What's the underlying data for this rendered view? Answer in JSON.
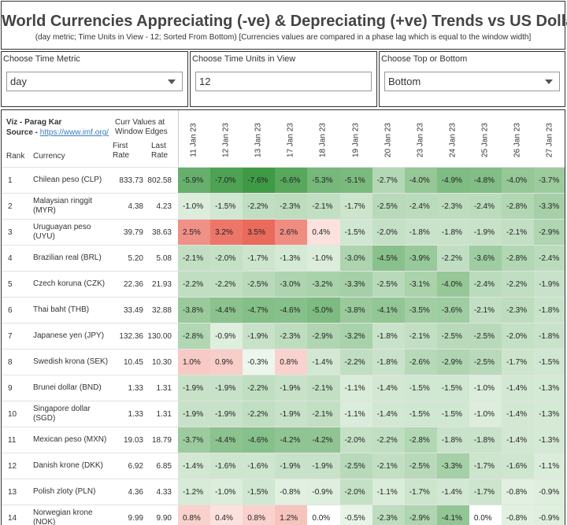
{
  "header": {
    "title": "World Currencies Appreciating (-ve) & Depreciating (+ve) Trends vs US Dollar",
    "subtitle": "(day metric; Time Units in View - 12; Sorted From Bottom) [Currencies values are compared in a phase lag which is equal to the window width]"
  },
  "controls": {
    "time_metric": {
      "label": "Choose Time Metric",
      "value": "day"
    },
    "time_units": {
      "label": "Choose Time Units in View",
      "value": "12"
    },
    "top_bottom": {
      "label": "Choose Top or Bottom",
      "value": "Bottom"
    }
  },
  "table_header": {
    "viz_by": "Viz - Parag Kar",
    "source_label": "Source -",
    "source_link": "https://www.imf.org/",
    "curr_values_line1": "Curr Values at",
    "curr_values_line2": "Window Edges",
    "first_line1": "First",
    "first_line2": "Rate",
    "last_line1": "Last",
    "last_line2": "Rate",
    "rank": "Rank",
    "currency": "Currency"
  },
  "colors": {
    "neg_strong": "#4a9e4a",
    "pos_strong": "#e8665a",
    "neutral": "#ffffff"
  },
  "chart_data": {
    "type": "heatmap",
    "title": "World Currencies Appreciating (-ve) & Depreciating (+ve) Trends vs US Dollar",
    "dates": [
      "11 Jan 23",
      "12 Jan 23",
      "13 Jan 23",
      "17 Jan 23",
      "18 Jan 23",
      "19 Jan 23",
      "20 Jan 23",
      "23 Jan 23",
      "24 Jan 23",
      "25 Jan 23",
      "26 Jan 23",
      "27 Jan 23"
    ],
    "rows": [
      {
        "rank": "1",
        "currency": "Chilean peso  (CLP)",
        "first": "833.73",
        "last": "802.58",
        "values": [
          -5.9,
          -7.0,
          -7.6,
          -6.6,
          -5.3,
          -5.1,
          -2.7,
          -4.0,
          -4.9,
          -4.8,
          -4.0,
          -3.7
        ]
      },
      {
        "rank": "2",
        "currency": "Malaysian ringgit (MYR)",
        "first": "4.38",
        "last": "4.23",
        "values": [
          -1.0,
          -1.5,
          -2.2,
          -2.3,
          -2.1,
          -1.7,
          -2.5,
          -2.4,
          -2.3,
          -2.4,
          -2.8,
          -3.3
        ]
      },
      {
        "rank": "3",
        "currency": "Uruguayan peso (UYU)",
        "first": "39.79",
        "last": "38.63",
        "values": [
          2.5,
          3.2,
          3.5,
          2.6,
          0.4,
          -1.5,
          -2.0,
          -1.8,
          -1.8,
          -1.9,
          -2.1,
          -2.9
        ]
      },
      {
        "rank": "4",
        "currency": "Brazilian real (BRL)",
        "first": "5.20",
        "last": "5.08",
        "values": [
          -2.1,
          -2.0,
          -1.7,
          -1.3,
          -1.0,
          -3.0,
          -4.5,
          -3.9,
          -2.2,
          -3.6,
          -2.8,
          -2.4
        ]
      },
      {
        "rank": "5",
        "currency": "Czech koruna (CZK)",
        "first": "22.36",
        "last": "21.93",
        "values": [
          -2.2,
          -2.2,
          -2.5,
          -3.0,
          -3.2,
          -3.3,
          -2.5,
          -3.1,
          -4.0,
          -2.4,
          -2.2,
          -1.9
        ]
      },
      {
        "rank": "6",
        "currency": "Thai baht  (THB)",
        "first": "33.49",
        "last": "32.88",
        "values": [
          -3.8,
          -4.4,
          -4.7,
          -4.6,
          -5.0,
          -3.8,
          -4.1,
          -3.5,
          -3.6,
          -2.1,
          -2.3,
          -1.8
        ]
      },
      {
        "rank": "7",
        "currency": "Japanese yen (JPY)",
        "first": "132.36",
        "last": "130.00",
        "values": [
          -2.8,
          -0.9,
          -1.9,
          -2.3,
          -2.9,
          -3.2,
          -1.8,
          -2.1,
          -2.5,
          -2.5,
          -2.0,
          -1.8
        ]
      },
      {
        "rank": "8",
        "currency": "Swedish krona (SEK)",
        "first": "10.45",
        "last": "10.30",
        "values": [
          1.0,
          0.9,
          -0.3,
          0.8,
          -1.4,
          -2.2,
          -1.8,
          -2.6,
          -2.9,
          -2.5,
          -1.7,
          -1.5
        ]
      },
      {
        "rank": "9",
        "currency": "Brunei dollar (BND)",
        "first": "1.33",
        "last": "1.31",
        "values": [
          -1.9,
          -1.9,
          -2.2,
          -1.9,
          -2.1,
          -1.1,
          -1.4,
          -1.5,
          -1.5,
          -1.0,
          -1.4,
          -1.3
        ]
      },
      {
        "rank": "10",
        "currency": "Singapore dollar (SGD)",
        "first": "1.33",
        "last": "1.31",
        "values": [
          -1.9,
          -1.9,
          -2.2,
          -1.9,
          -2.1,
          -1.1,
          -1.4,
          -1.5,
          -1.5,
          -1.0,
          -1.4,
          -1.3
        ]
      },
      {
        "rank": "11",
        "currency": "Mexican peso (MXN)",
        "first": "19.03",
        "last": "18.79",
        "values": [
          -3.7,
          -4.4,
          -4.6,
          -4.2,
          -4.2,
          -2.0,
          -2.2,
          -2.8,
          -1.8,
          -1.8,
          -1.4,
          -1.3
        ]
      },
      {
        "rank": "12",
        "currency": "Danish krone (DKK)",
        "first": "6.92",
        "last": "6.85",
        "values": [
          -1.4,
          -1.6,
          -1.6,
          -1.9,
          -1.9,
          -2.5,
          -2.1,
          -2.5,
          -3.3,
          -1.7,
          -1.6,
          -1.1
        ]
      },
      {
        "rank": "13",
        "currency": "Polish zloty  (PLN)",
        "first": "4.36",
        "last": "4.33",
        "values": [
          -1.2,
          -1.0,
          -1.5,
          -0.8,
          -0.9,
          -2.0,
          -1.1,
          -1.7,
          -1.4,
          -1.7,
          -0.8,
          -0.9
        ]
      },
      {
        "rank": "14",
        "currency": "Norwegian krone (NOK)",
        "first": "9.99",
        "last": "9.90",
        "values": [
          0.8,
          0.4,
          0.8,
          1.2,
          0.0,
          -0.5,
          -2.3,
          -2.9,
          -4.1,
          0.0,
          -0.8,
          -0.9
        ]
      }
    ]
  }
}
